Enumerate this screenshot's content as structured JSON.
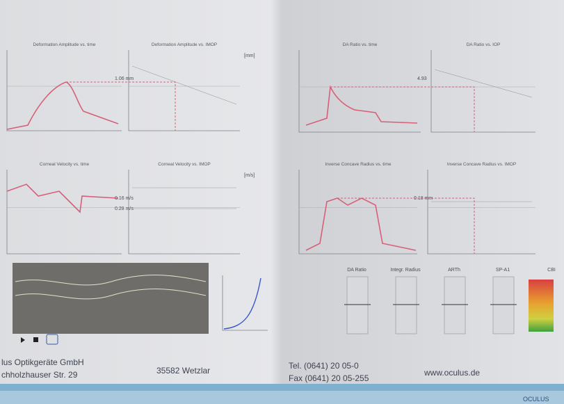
{
  "panels": [
    {
      "title": "Deformation Amplitude vs. time"
    },
    {
      "title": "Deformation Amplitude vs. IMOP",
      "unit": "[mm]",
      "annotation": "1.06 mm"
    },
    {
      "title": "DA Ratio vs. time"
    },
    {
      "title": "DA Ratio vs. IOP",
      "annotation": "4.93"
    },
    {
      "title": "Corneal Velocity vs. time"
    },
    {
      "title": "Corneal Velocity vs. IMOP",
      "unit": "[m/s]",
      "annotation": "0.16 m/s",
      "annotation2": "0.28 m/s"
    },
    {
      "title": "Inverse Concave Radius vs. time"
    },
    {
      "title": "Inverse Concave Radius vs. IMOP",
      "annotation": "0.18 mm"
    }
  ],
  "bars": [
    "DA Ratio",
    "Integr. Radius",
    "ARTh",
    "SP-A1",
    "CBI"
  ],
  "footer": {
    "company": "lus Optikgeräte GmbH",
    "street": "chholzhauser Str. 29",
    "city": "35582 Wetzlar",
    "tel": "Tel. (0641) 20 05-0",
    "fax": "Fax (0641) 20 05-255",
    "web": "www.oculus.de",
    "logo": "OCULUS"
  }
}
